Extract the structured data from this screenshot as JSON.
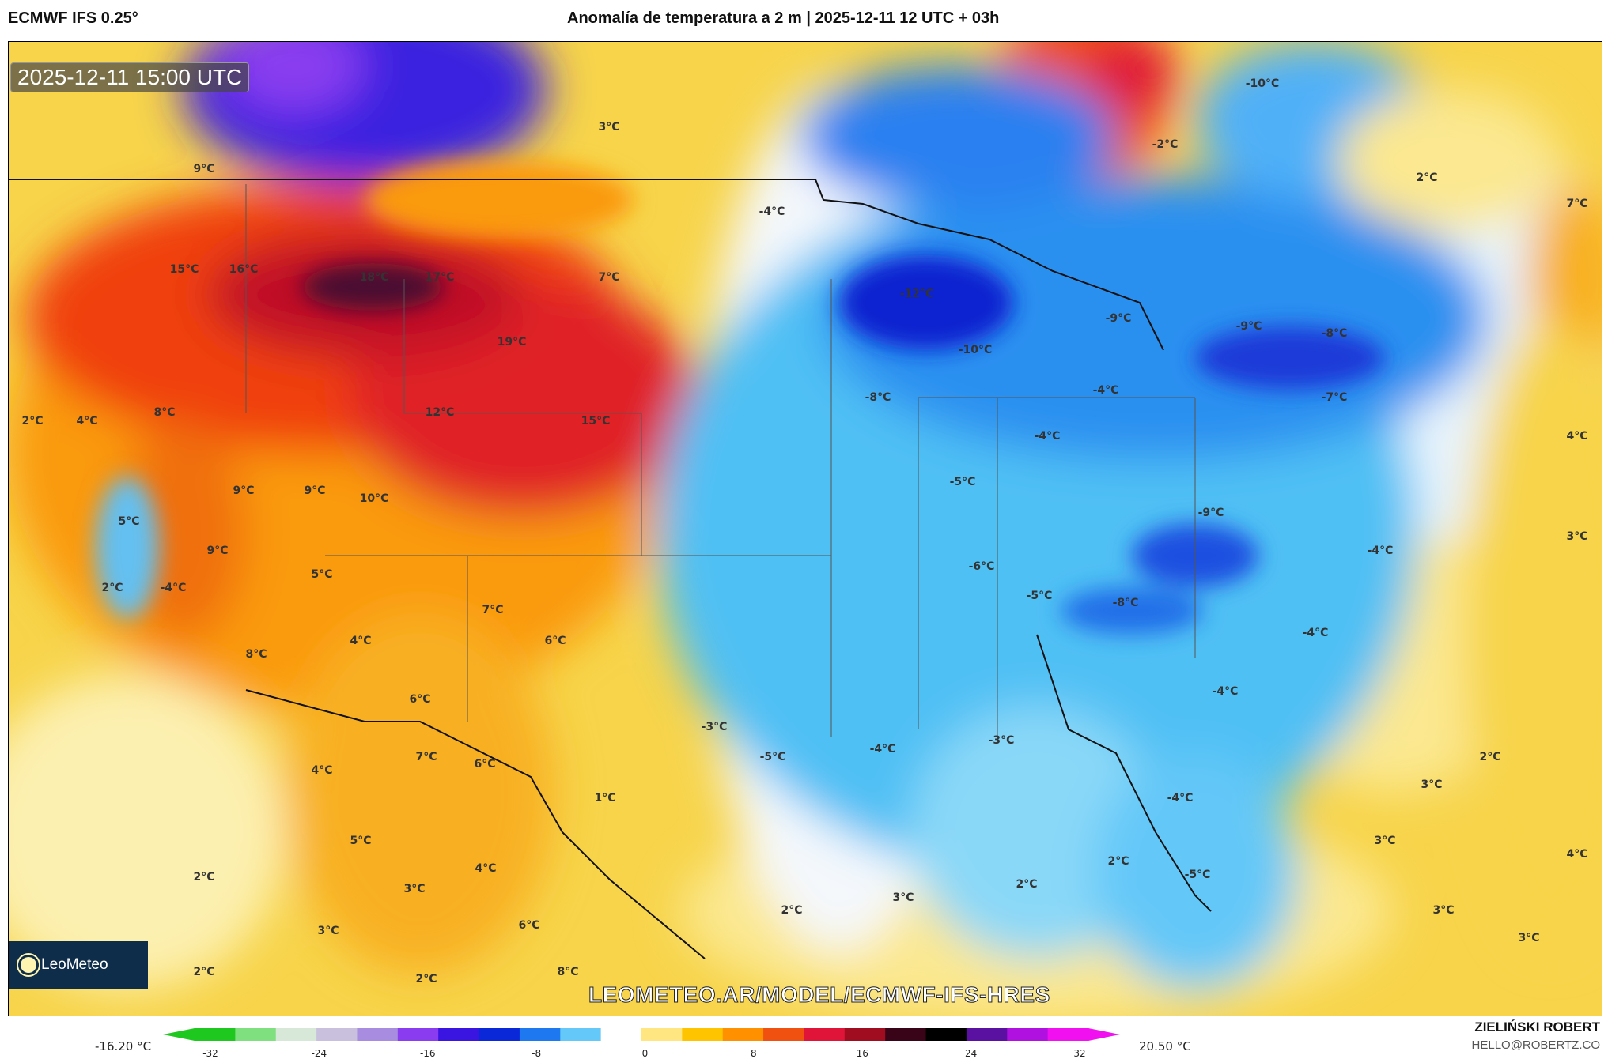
{
  "header": {
    "model": "ECMWF IFS 0.25°",
    "title": "Anomalía de temperatura a 2 m | 2025-12-11 12 UTC + 03h"
  },
  "map": {
    "valid_time": "2025-12-11 15:00 UTC",
    "watermark": "LEOMETEO.AR/MODEL/ECMWF-IFS-HRES",
    "logo_text": "LeoMeteo",
    "labels": [
      "3°C",
      "9°C",
      "-10°C",
      "-2°C",
      "2°C",
      "7°C",
      "-4°C",
      "15°C",
      "16°C",
      "18°C",
      "17°C",
      "7°C",
      "-12°C",
      "-9°C",
      "-9°C",
      "-8°C",
      "19°C",
      "-10°C",
      "-8°C",
      "-4°C",
      "-7°C",
      "2°C",
      "4°C",
      "8°C",
      "12°C",
      "15°C",
      "-4°C",
      "4°C",
      "-5°C",
      "9°C",
      "9°C",
      "10°C",
      "-9°C",
      "5°C",
      "3°C",
      "-4°C",
      "9°C",
      "5°C",
      "-6°C",
      "2°C",
      "-4°C",
      "-5°C",
      "-8°C",
      "7°C",
      "4°C",
      "6°C",
      "-4°C",
      "8°C",
      "6°C",
      "-4°C",
      "-3°C",
      "-5°C",
      "-4°C",
      "-3°C",
      "7°C",
      "6°C",
      "2°C",
      "4°C",
      "3°C",
      "1°C",
      "-4°C",
      "5°C",
      "3°C",
      "4°C",
      "2°C",
      "-5°C",
      "2°C",
      "2°C",
      "4°C",
      "3°C",
      "3°C",
      "2°C",
      "3°C",
      "6°C",
      "3°C",
      "3°C",
      "2°C",
      "8°C",
      "2°C"
    ]
  },
  "colorbar": {
    "min_label": "-16.20 °C",
    "max_label": "20.50 °C",
    "ticks": [
      "-32",
      "-24",
      "-16",
      "-8",
      "0",
      "8",
      "16",
      "24",
      "32"
    ],
    "colors": [
      "#1fc81f",
      "#7ee07e",
      "#d8e8d8",
      "#c8c0dc",
      "#a88ce0",
      "#8a3cf0",
      "#3a14e0",
      "#0a28d8",
      "#1e78f0",
      "#64c8f8",
      "#ffffff",
      "#ffe680",
      "#ffc400",
      "#ff9000",
      "#f05010",
      "#e01438",
      "#a00c20",
      "#3a0418",
      "#000000",
      "#5a10a0",
      "#b010e0",
      "#f010f0"
    ]
  },
  "footer": {
    "author": "ZIELIŃSKI ROBERT",
    "email": "HELLO@ROBERTZ.CO"
  }
}
